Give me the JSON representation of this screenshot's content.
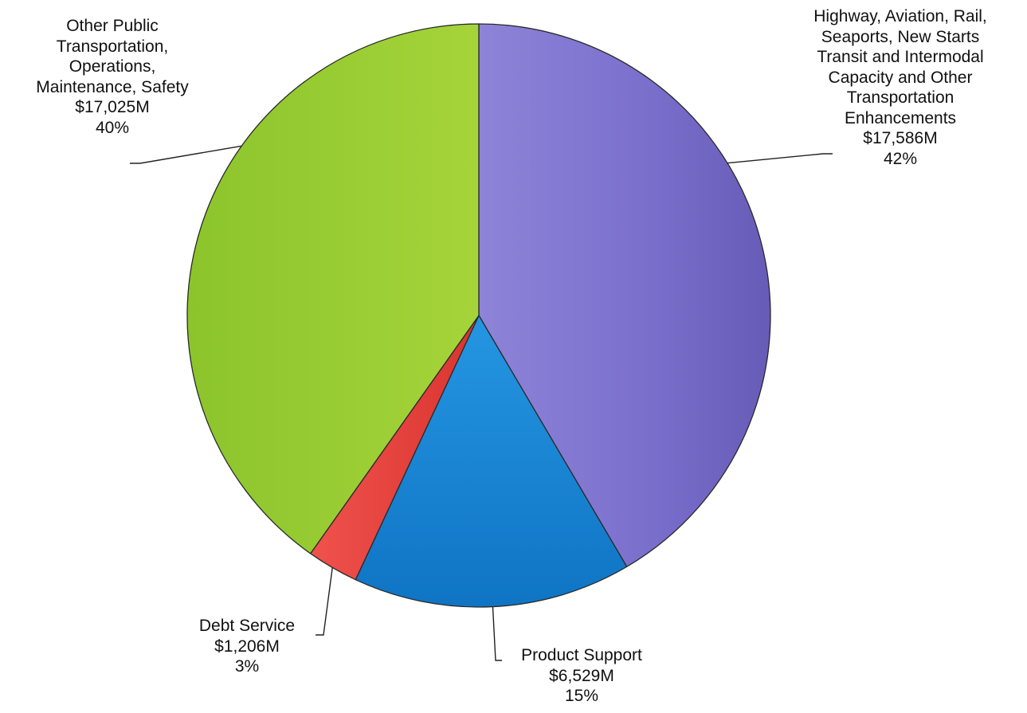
{
  "chart_data": {
    "type": "pie",
    "title": "",
    "slices": [
      {
        "label_lines": [
          "Highway, Aviation, Rail,",
          "Seaports, New Starts",
          "Transit and Intermodal",
          "Capacity and Other",
          "Transportation",
          "Enhancements"
        ],
        "amount": "$17,586M",
        "percent_label": "42%",
        "value": 17586,
        "color": "#7b6fcc"
      },
      {
        "label_lines": [
          "Product Support"
        ],
        "amount": "$6,529M",
        "percent_label": "15%",
        "value": 6529,
        "color": "#1580d2"
      },
      {
        "label_lines": [
          "Debt Service"
        ],
        "amount": "$1,206M",
        "percent_label": "3%",
        "value": 1206,
        "color": "#e8403c"
      },
      {
        "label_lines": [
          "Other Public",
          "Transportation,",
          "Operations,",
          "Maintenance, Safety"
        ],
        "amount": "$17,025M",
        "percent_label": "40%",
        "value": 17025,
        "color": "#96cc2c"
      }
    ]
  }
}
